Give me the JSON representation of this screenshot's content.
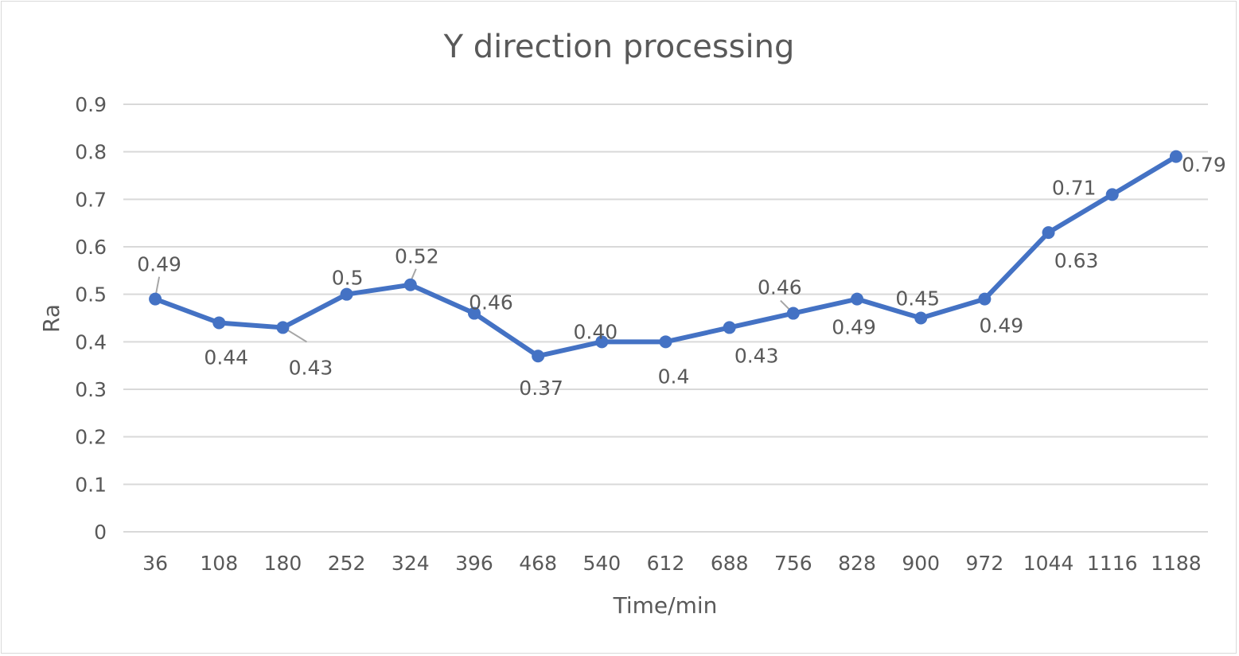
{
  "chart_data": {
    "type": "line",
    "title": "Y direction processing",
    "xlabel": "Time/min",
    "ylabel": "Ra",
    "categories": [
      "36",
      "108",
      "180",
      "252",
      "324",
      "396",
      "468",
      "540",
      "612",
      "688",
      "756",
      "828",
      "900",
      "972",
      "1044",
      "1116",
      "1188"
    ],
    "series": [
      {
        "name": "Ra",
        "values": [
          0.49,
          0.44,
          0.43,
          0.5,
          0.52,
          0.46,
          0.37,
          0.4,
          0.4,
          0.43,
          0.46,
          0.49,
          0.45,
          0.49,
          0.63,
          0.71,
          0.79
        ],
        "data_labels": [
          "0.49",
          "0.44",
          "0.43",
          "0.5",
          "0.52",
          "0.46",
          "0.37",
          "0.40",
          "0.4",
          "0.43",
          "0.46",
          "0.49",
          "0.45",
          "0.49",
          "0.63",
          "0.71",
          "0.79"
        ],
        "color": "#4472C4"
      }
    ],
    "ylim": [
      0,
      0.9
    ],
    "yticks": [
      "0",
      "0.1",
      "0.2",
      "0.3",
      "0.4",
      "0.5",
      "0.6",
      "0.7",
      "0.8",
      "0.9"
    ],
    "grid": true,
    "legend": "none"
  }
}
